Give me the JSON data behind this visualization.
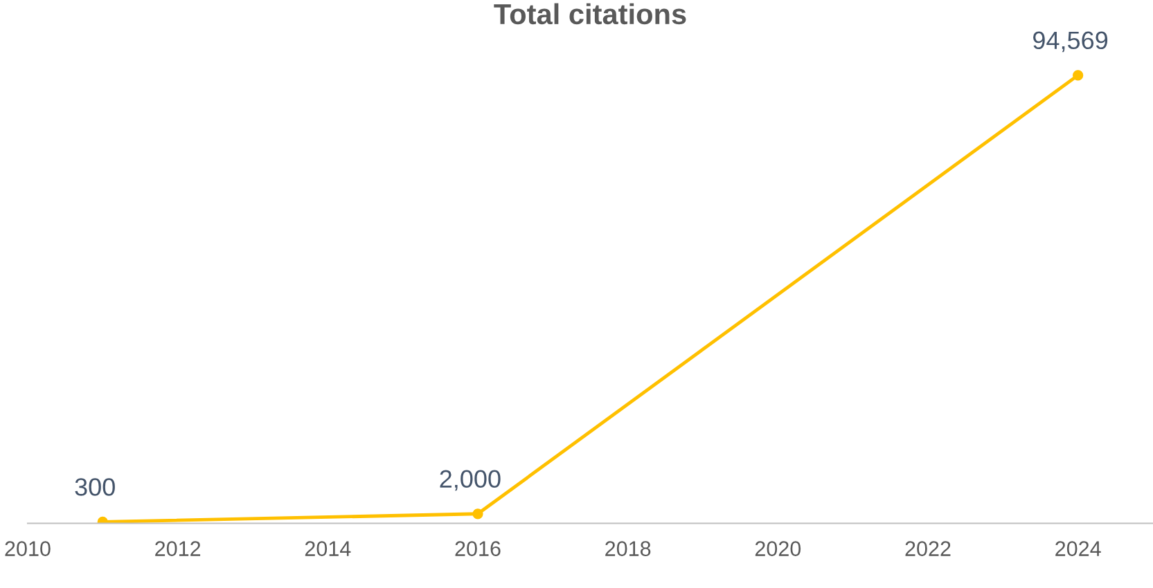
{
  "chart_data": {
    "type": "line",
    "title": "Total citations",
    "x": [
      2011,
      2016,
      2024
    ],
    "series": [
      {
        "color": "#ffc000",
        "values": [
          300,
          2000,
          94569
        ],
        "value_labels": [
          "300",
          "2,000",
          "94,569"
        ]
      }
    ],
    "marker": "circle",
    "line_style": "solid",
    "xlim": [
      2010,
      2025
    ],
    "xticks": [
      2010,
      2012,
      2014,
      2016,
      2018,
      2020,
      2022,
      2024
    ],
    "tick_labels": "x"
  }
}
